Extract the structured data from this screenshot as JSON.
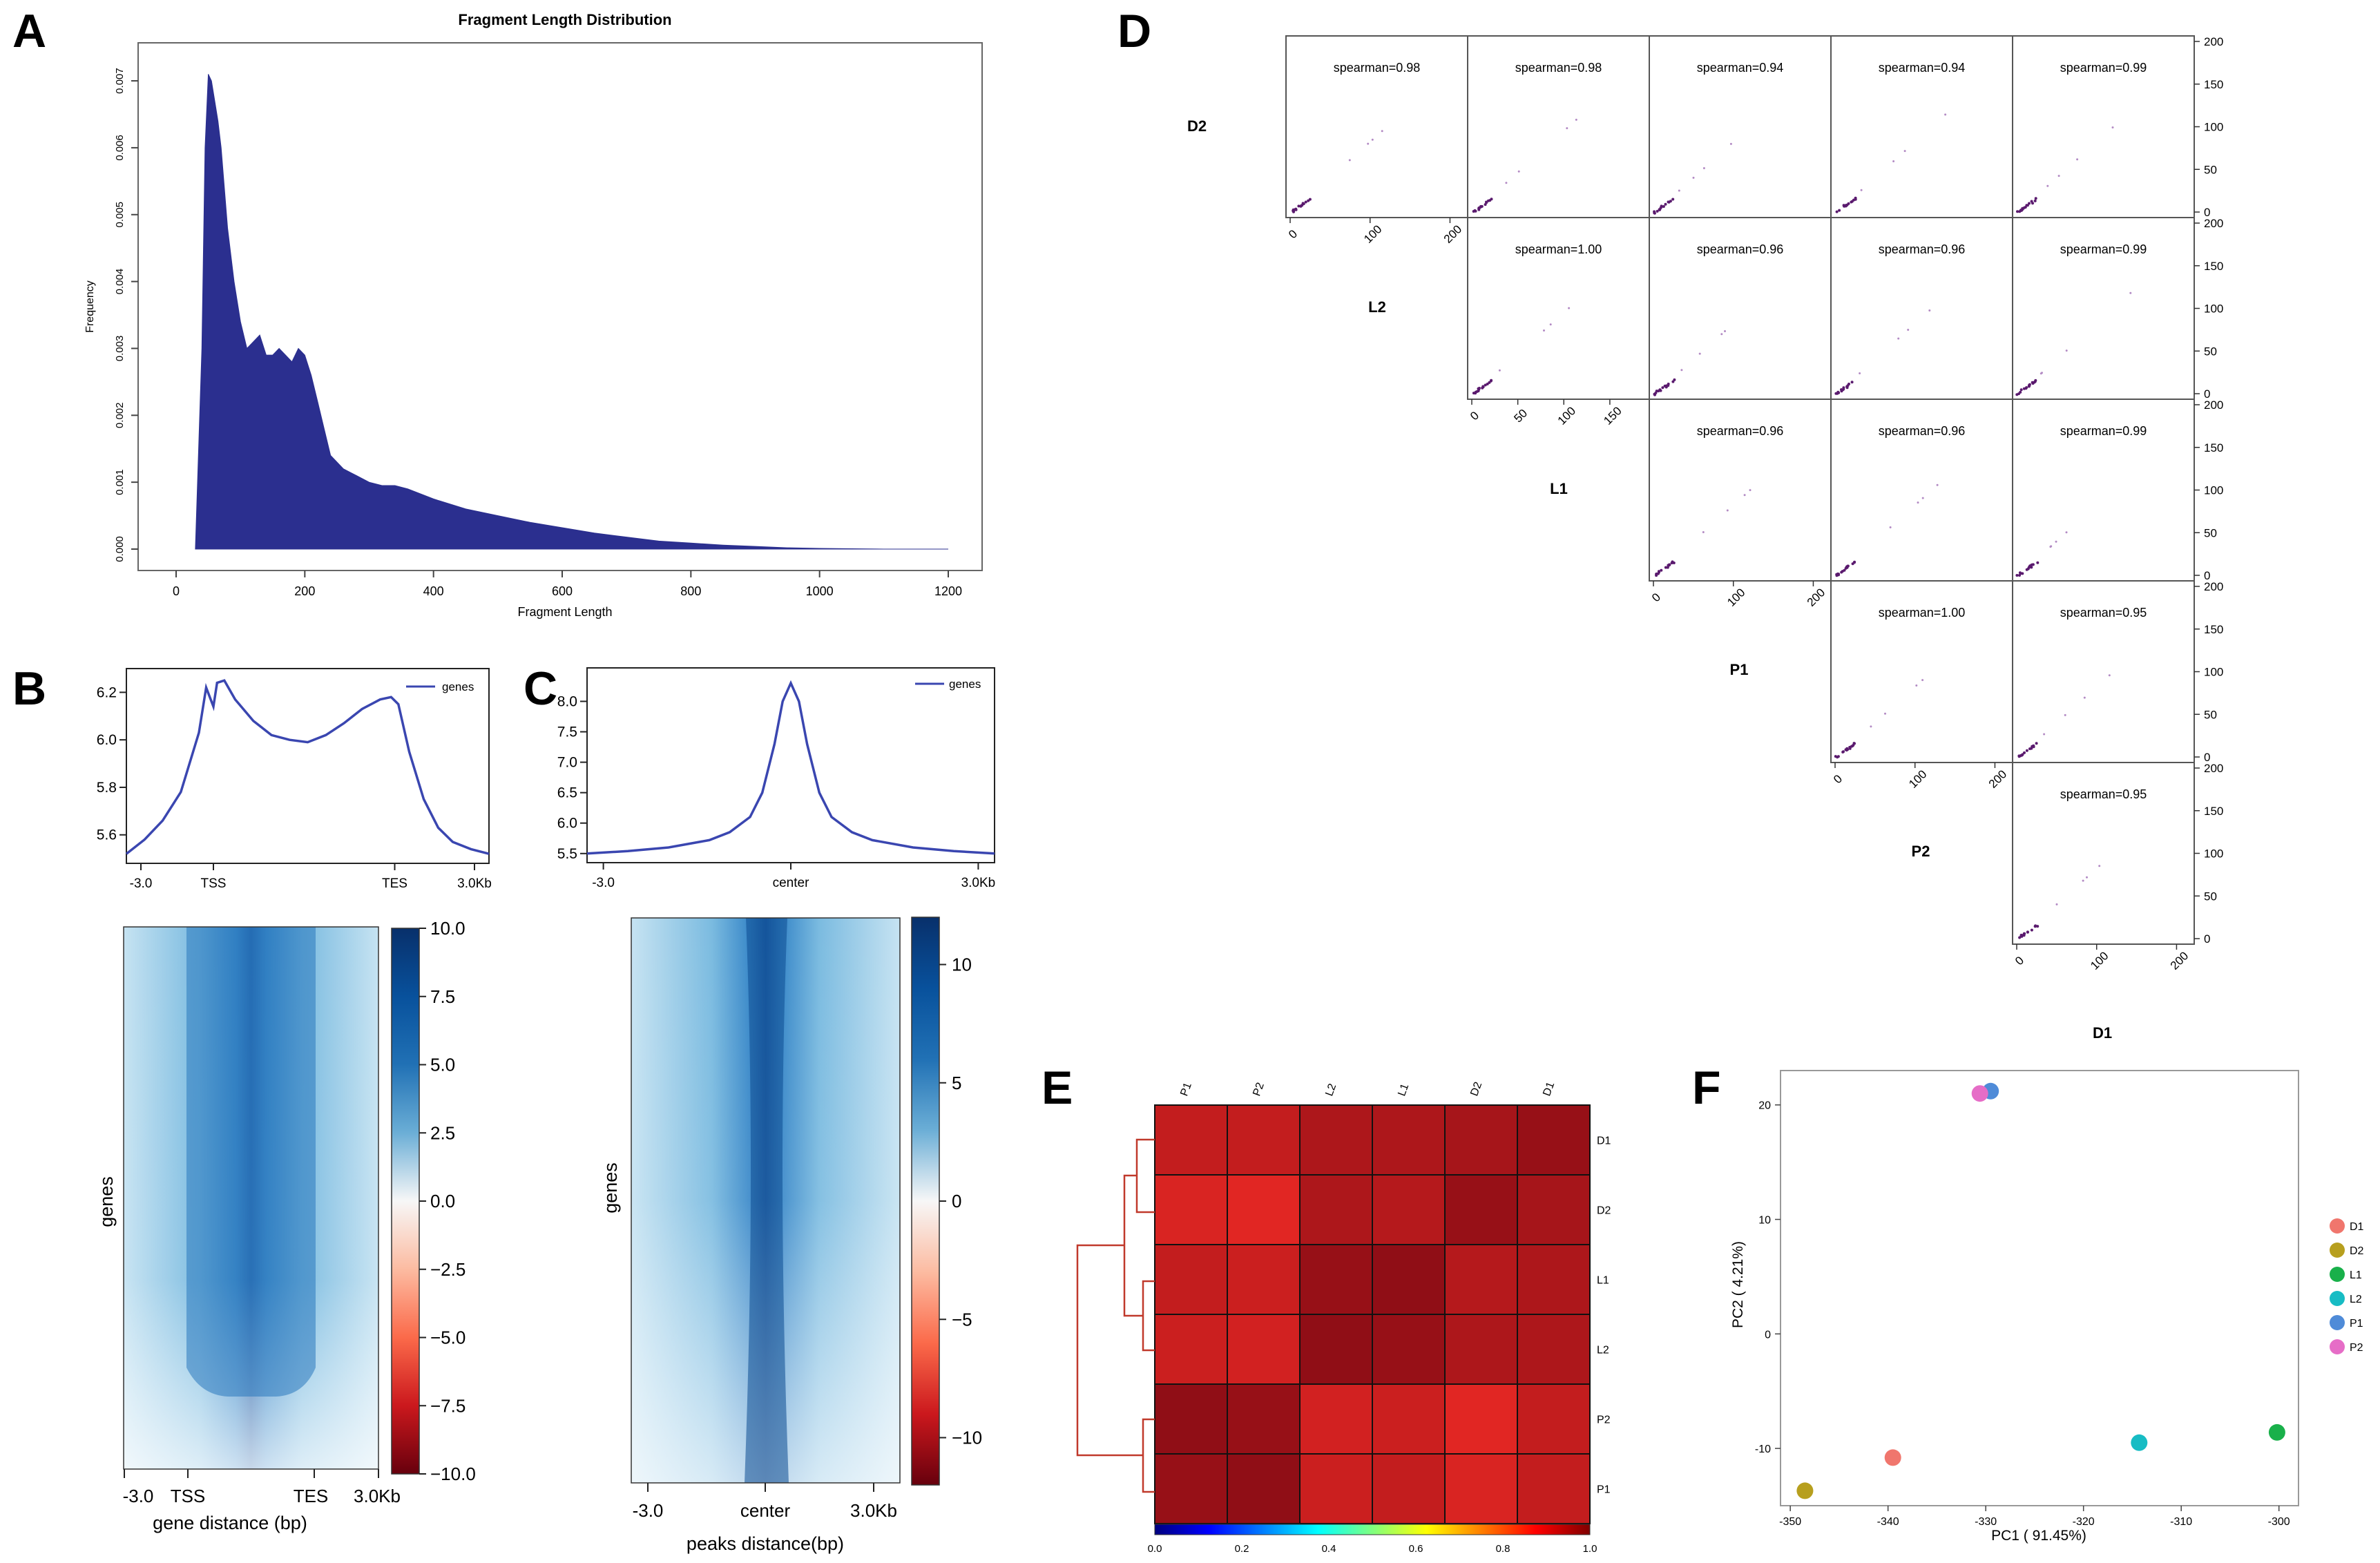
{
  "panels": {
    "A": {
      "letter": "A",
      "title": "Fragment Length Distribution",
      "xlabel": "Fragment Length",
      "ylabel": "Frequency",
      "xticks": [
        "0",
        "200",
        "400",
        "600",
        "800",
        "1000",
        "1200"
      ],
      "yticks": [
        "0.000",
        "0.001",
        "0.002",
        "0.003",
        "0.004",
        "0.005",
        "0.006",
        "0.007"
      ]
    },
    "B": {
      "letter": "B",
      "legend": "genes",
      "profile_yticks": [
        "5.6",
        "5.8",
        "6.0",
        "6.2"
      ],
      "profile_xticks": [
        "-3.0",
        "TSS",
        "TES",
        "3.0Kb"
      ],
      "heat_xticks": [
        "-3.0",
        "TSS",
        "TES",
        "3.0Kb"
      ],
      "heat_xlabel": "gene distance (bp)",
      "heat_ylabel": "genes",
      "colorbar_ticks": [
        "10.0",
        "7.5",
        "5.0",
        "2.5",
        "0.0",
        "−2.5",
        "−5.0",
        "−7.5",
        "−10.0"
      ]
    },
    "C": {
      "letter": "C",
      "legend": "genes",
      "profile_yticks": [
        "5.5",
        "6.0",
        "6.5",
        "7.0",
        "7.5",
        "8.0"
      ],
      "profile_xticks": [
        "-3.0",
        "center",
        "3.0Kb"
      ],
      "heat_xticks": [
        "-3.0",
        "center",
        "3.0Kb"
      ],
      "heat_xlabel": "peaks distance(bp)",
      "heat_ylabel": "genes",
      "colorbar_ticks": [
        "10",
        "5",
        "0",
        "−5",
        "−10"
      ]
    },
    "D": {
      "letter": "D",
      "samples": [
        "D2",
        "L2",
        "L1",
        "P1",
        "P2",
        "D1"
      ],
      "right_axis_ticks": [
        "200",
        "150",
        "100",
        "50",
        "0"
      ],
      "cells": [
        [
          "spearman=0.98",
          "spearman=0.98",
          "spearman=0.94",
          "spearman=0.94",
          "spearman=0.99"
        ],
        [
          "spearman=1.00",
          "spearman=0.96",
          "spearman=0.96",
          "spearman=0.99"
        ],
        [
          "spearman=0.96",
          "spearman=0.96",
          "spearman=0.99"
        ],
        [
          "spearman=1.00",
          "spearman=0.95"
        ],
        [
          "spearman=0.95"
        ]
      ],
      "bottom_axis_ticks": [
        [
          "0",
          "100",
          "200"
        ],
        [
          "0",
          "50",
          "100",
          "150"
        ],
        [
          "0",
          "100",
          "200"
        ],
        [
          "0",
          "100",
          "200"
        ],
        [
          "0",
          "100",
          "200"
        ]
      ]
    },
    "E": {
      "letter": "E",
      "colorbar_ticks": [
        "0.0",
        "0.2",
        "0.4",
        "0.6",
        "0.8",
        "1.0"
      ]
    },
    "F": {
      "letter": "F",
      "xlabel": "PC1 ( 91.45%)",
      "ylabel": "PC2 ( 4.21%)",
      "xticks": [
        "-350",
        "-340",
        "-330",
        "-320",
        "-310",
        "-300"
      ],
      "yticks": [
        "20",
        "10",
        "0",
        "-10"
      ]
    }
  },
  "chart_data": [
    {
      "id": "A",
      "type": "area",
      "title": "Fragment Length Distribution",
      "xlabel": "Fragment Length",
      "ylabel": "Frequency",
      "xlim": [
        0,
        1200
      ],
      "ylim": [
        0,
        0.0073
      ],
      "color": "#2b2f8f",
      "x": [
        30,
        40,
        45,
        50,
        55,
        60,
        65,
        70,
        80,
        90,
        100,
        110,
        120,
        130,
        140,
        150,
        160,
        170,
        180,
        190,
        200,
        210,
        220,
        230,
        240,
        260,
        280,
        300,
        320,
        340,
        360,
        400,
        450,
        500,
        550,
        600,
        650,
        700,
        750,
        800,
        850,
        900,
        950,
        1000,
        1050,
        1100,
        1200
      ],
      "y": [
        0.0,
        0.003,
        0.006,
        0.0071,
        0.007,
        0.0067,
        0.0064,
        0.006,
        0.0048,
        0.004,
        0.0034,
        0.003,
        0.0031,
        0.0032,
        0.0029,
        0.0029,
        0.003,
        0.0029,
        0.0028,
        0.003,
        0.0029,
        0.0026,
        0.0022,
        0.0018,
        0.0014,
        0.0012,
        0.0011,
        0.001,
        0.00095,
        0.00095,
        0.0009,
        0.00075,
        0.0006,
        0.0005,
        0.0004,
        0.00032,
        0.00024,
        0.00018,
        0.00012,
        9e-05,
        6e-05,
        4e-05,
        2e-05,
        1e-05,
        5e-06,
        0.0,
        0.0
      ]
    },
    {
      "id": "B-profile",
      "type": "line",
      "legend": [
        "genes"
      ],
      "xticks": [
        "-3.0",
        "TSS",
        "TES",
        "3.0Kb"
      ],
      "x": [
        0,
        0.05,
        0.1,
        0.15,
        0.2,
        0.22,
        0.24,
        0.25,
        0.27,
        0.3,
        0.35,
        0.4,
        0.45,
        0.5,
        0.55,
        0.6,
        0.65,
        0.7,
        0.73,
        0.75,
        0.78,
        0.82,
        0.86,
        0.9,
        0.95,
        1.0
      ],
      "y": [
        5.52,
        5.58,
        5.66,
        5.78,
        6.03,
        6.22,
        6.14,
        6.24,
        6.25,
        6.17,
        6.08,
        6.02,
        6.0,
        5.99,
        6.02,
        6.07,
        6.13,
        6.17,
        6.18,
        6.15,
        5.95,
        5.75,
        5.63,
        5.57,
        5.54,
        5.52
      ],
      "ylim": [
        5.48,
        6.3
      ],
      "color": "#3a46b0"
    },
    {
      "id": "B-heatmap",
      "type": "heatmap",
      "xlabel": "gene distance (bp)",
      "ylabel": "genes",
      "colorbar_range": [
        -10,
        10
      ]
    },
    {
      "id": "C-profile",
      "type": "line",
      "legend": [
        "genes"
      ],
      "xticks": [
        "-3.0",
        "center",
        "3.0Kb"
      ],
      "x": [
        0,
        0.1,
        0.2,
        0.3,
        0.35,
        0.4,
        0.43,
        0.46,
        0.48,
        0.5,
        0.52,
        0.54,
        0.57,
        0.6,
        0.65,
        0.7,
        0.8,
        0.9,
        1.0
      ],
      "y": [
        5.5,
        5.54,
        5.6,
        5.72,
        5.85,
        6.1,
        6.5,
        7.3,
        8.0,
        8.3,
        8.0,
        7.3,
        6.5,
        6.1,
        5.85,
        5.72,
        5.6,
        5.54,
        5.5
      ],
      "ylim": [
        5.35,
        8.55
      ],
      "color": "#3a46b0"
    },
    {
      "id": "C-heatmap",
      "type": "heatmap",
      "xlabel": "peaks distance(bp)",
      "ylabel": "genes",
      "colorbar_range": [
        -12,
        12
      ]
    },
    {
      "id": "D",
      "type": "scatter",
      "samples": [
        "D2",
        "L2",
        "L1",
        "P1",
        "P2",
        "D1"
      ],
      "spearman": [
        [
          0.98,
          0.98,
          0.94,
          0.94,
          0.99
        ],
        [
          1.0,
          0.96,
          0.96,
          0.99
        ],
        [
          0.96,
          0.96,
          0.99
        ],
        [
          1.0,
          0.95
        ],
        [
          0.95
        ]
      ]
    },
    {
      "id": "E",
      "type": "heatmap",
      "rows": [
        "D1",
        "D2",
        "L1",
        "L2",
        "P2",
        "P1"
      ],
      "cols": [
        "P1",
        "P2",
        "L2",
        "L1",
        "D2",
        "D1"
      ],
      "values": [
        [
          0.93,
          0.93,
          0.96,
          0.96,
          0.97,
          0.99
        ],
        [
          0.9,
          0.89,
          0.96,
          0.95,
          0.99,
          0.97
        ],
        [
          0.93,
          0.92,
          0.99,
          1.0,
          0.95,
          0.96
        ],
        [
          0.92,
          0.91,
          1.0,
          0.99,
          0.96,
          0.96
        ],
        [
          1.0,
          0.99,
          0.91,
          0.92,
          0.89,
          0.93
        ],
        [
          0.99,
          1.0,
          0.92,
          0.93,
          0.9,
          0.93
        ]
      ],
      "colorbar_range": [
        0.0,
        1.0
      ]
    },
    {
      "id": "F",
      "type": "scatter",
      "xlabel": "PC1 ( 91.45%)",
      "ylabel": "PC2 ( 4.21%)",
      "xlim": [
        -351,
        -298
      ],
      "ylim": [
        -15,
        23
      ],
      "legend_position": "right",
      "points": [
        {
          "name": "D1",
          "x": -339.5,
          "y": -10.8,
          "color": "#f0766d"
        },
        {
          "name": "D2",
          "x": -348.5,
          "y": -13.7,
          "color": "#b79f1e"
        },
        {
          "name": "L1",
          "x": -300.2,
          "y": -8.6,
          "color": "#19b04a"
        },
        {
          "name": "L2",
          "x": -314.3,
          "y": -9.5,
          "color": "#17bcc4"
        },
        {
          "name": "P1",
          "x": -329.5,
          "y": 21.2,
          "color": "#4f8bd8"
        },
        {
          "name": "P2",
          "x": -330.6,
          "y": 21.0,
          "color": "#e66dc7"
        }
      ]
    }
  ]
}
